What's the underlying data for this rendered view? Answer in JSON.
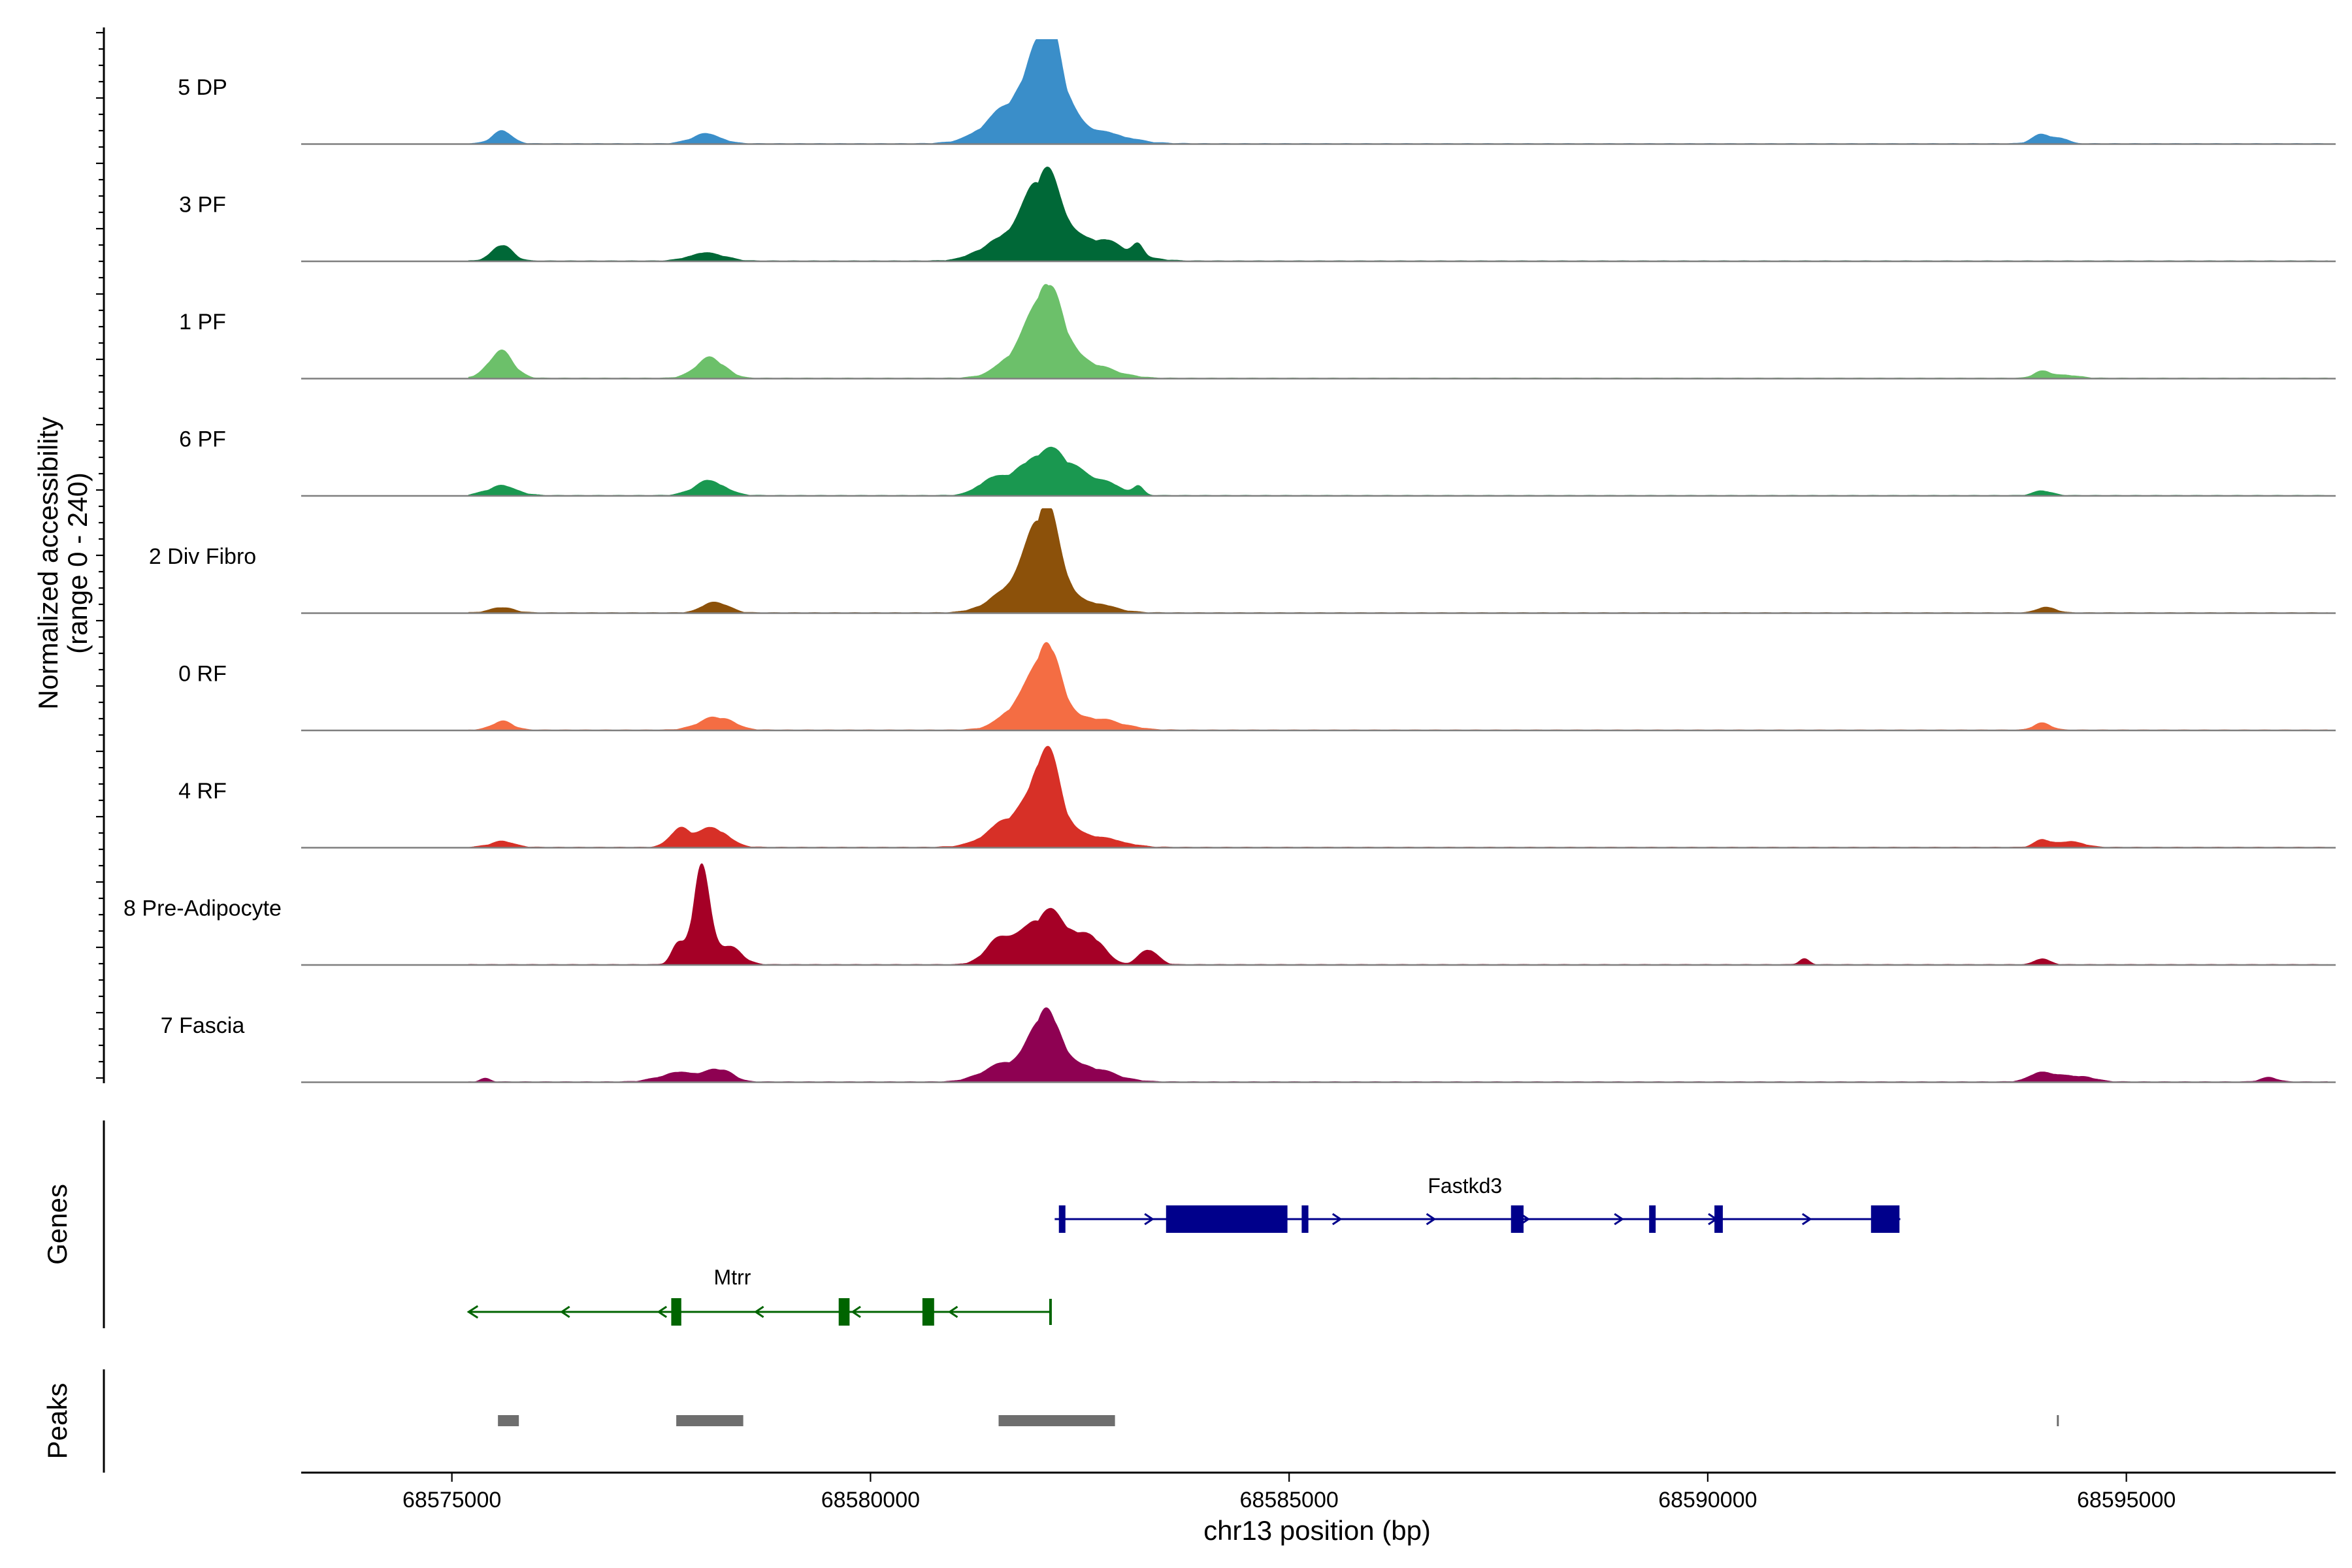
{
  "chart_data": {
    "type": "area",
    "title": "",
    "region": "chr13",
    "xlabel": "chr13 position (bp)",
    "ylabel_line1": "Normalized accessibility",
    "ylabel_line2": "(range 0 - 240)",
    "y_range": [
      0,
      240
    ],
    "xlim": [
      68573200,
      68597500
    ],
    "x_ticks": [
      68575000,
      68580000,
      68585000,
      68590000,
      68595000
    ],
    "x_tick_labels": [
      "68575000",
      "68580000",
      "68585000",
      "68590000",
      "68595000"
    ],
    "series": [
      {
        "name": "5 DP",
        "color": "#3a8ec9",
        "peaks": [
          [
            68575600,
            120,
            0.13
          ],
          [
            68578040,
            180,
            0.1
          ],
          [
            68582100,
            180,
            0.92
          ],
          [
            68581800,
            350,
            0.45
          ],
          [
            68582550,
            400,
            0.15
          ],
          [
            68594000,
            120,
            0.1
          ],
          [
            68594250,
            80,
            0.04
          ]
        ]
      },
      {
        "name": "3 PF",
        "color": "#006837",
        "peaks": [
          [
            68575600,
            120,
            0.18
          ],
          [
            68578050,
            200,
            0.09
          ],
          [
            68582100,
            200,
            0.78
          ],
          [
            68581700,
            300,
            0.3
          ],
          [
            68582700,
            350,
            0.22
          ],
          [
            68583200,
            60,
            0.12
          ]
        ]
      },
      {
        "name": "1 PF",
        "color": "#6cc06a",
        "peaks": [
          [
            68575580,
            150,
            0.28
          ],
          [
            68578080,
            170,
            0.22
          ],
          [
            68582130,
            170,
            0.78
          ],
          [
            68581900,
            280,
            0.35
          ],
          [
            68582600,
            300,
            0.15
          ],
          [
            68594000,
            100,
            0.08
          ],
          [
            68594300,
            150,
            0.03
          ]
        ]
      },
      {
        "name": "6 PF",
        "color": "#1a9850",
        "peaks": [
          [
            68575600,
            180,
            0.1
          ],
          [
            68578080,
            190,
            0.15
          ],
          [
            68582100,
            350,
            0.48
          ],
          [
            68581400,
            150,
            0.1
          ],
          [
            68582800,
            200,
            0.1
          ],
          [
            68583200,
            60,
            0.08
          ],
          [
            68594000,
            110,
            0.05
          ]
        ]
      },
      {
        "name": "2 Div Fibro",
        "color": "#8c510a",
        "peaks": [
          [
            68575600,
            140,
            0.06
          ],
          [
            68578150,
            150,
            0.12
          ],
          [
            68582100,
            170,
            0.83
          ],
          [
            68581850,
            300,
            0.4
          ],
          [
            68582600,
            280,
            0.1
          ],
          [
            68594050,
            110,
            0.06
          ]
        ]
      },
      {
        "name": "0 RF",
        "color": "#f46d43",
        "peaks": [
          [
            68575600,
            130,
            0.09
          ],
          [
            68578150,
            200,
            0.14
          ],
          [
            68582130,
            150,
            0.72
          ],
          [
            68581900,
            260,
            0.35
          ],
          [
            68582700,
            300,
            0.12
          ],
          [
            68594000,
            100,
            0.08
          ]
        ]
      },
      {
        "name": "4 RF",
        "color": "#d73027",
        "peaks": [
          [
            68575600,
            150,
            0.06
          ],
          [
            68577720,
            120,
            0.2
          ],
          [
            68578120,
            180,
            0.2
          ],
          [
            68582100,
            160,
            0.8
          ],
          [
            68581800,
            320,
            0.35
          ],
          [
            68582650,
            300,
            0.12
          ],
          [
            68594000,
            100,
            0.08
          ],
          [
            68594350,
            150,
            0.06
          ]
        ]
      },
      {
        "name": "8 Pre-Adipocyte",
        "color": "#a50026",
        "peaks": [
          [
            68577980,
            100,
            1.0
          ],
          [
            68577700,
            80,
            0.2
          ],
          [
            68578300,
            150,
            0.2
          ],
          [
            68582130,
            280,
            0.55
          ],
          [
            68581550,
            170,
            0.25
          ],
          [
            68582650,
            150,
            0.22
          ],
          [
            68583320,
            110,
            0.17
          ],
          [
            68591150,
            60,
            0.06
          ],
          [
            68594000,
            90,
            0.06
          ]
        ]
      },
      {
        "name": "7 Fascia",
        "color": "#8e0152",
        "peaks": [
          [
            68575400,
            60,
            0.04
          ],
          [
            68577750,
            250,
            0.1
          ],
          [
            68578200,
            150,
            0.12
          ],
          [
            68582100,
            170,
            0.75
          ],
          [
            68581600,
            250,
            0.2
          ],
          [
            68582600,
            300,
            0.15
          ],
          [
            68594000,
            150,
            0.1
          ],
          [
            68594400,
            200,
            0.06
          ],
          [
            68596700,
            100,
            0.05
          ]
        ]
      }
    ],
    "genes": [
      {
        "name": "Fastkd3",
        "strand": "+",
        "color": "#00008b",
        "start": 68582200,
        "end": 68592300,
        "exons": [
          [
            68582250,
            68582320
          ],
          [
            68583530,
            68584980
          ],
          [
            68585150,
            68585230
          ],
          [
            68587650,
            68587800
          ],
          [
            68589300,
            68589350
          ],
          [
            68590080,
            68590180
          ],
          [
            68591950,
            68592290
          ]
        ]
      },
      {
        "name": "Mtrr",
        "strand": "-",
        "color": "#006400",
        "start": 68575200,
        "end": 68582150,
        "exons": [
          [
            68577620,
            68577740
          ],
          [
            68579620,
            68579750
          ],
          [
            68580620,
            68580760
          ]
        ]
      }
    ],
    "track_titles": {
      "genes": "Genes",
      "peaks": "Peaks"
    },
    "peaks": [
      [
        68575550,
        68575800
      ],
      [
        68577680,
        68578480
      ],
      [
        68581530,
        68582920
      ],
      [
        68594170,
        68594190
      ]
    ]
  }
}
